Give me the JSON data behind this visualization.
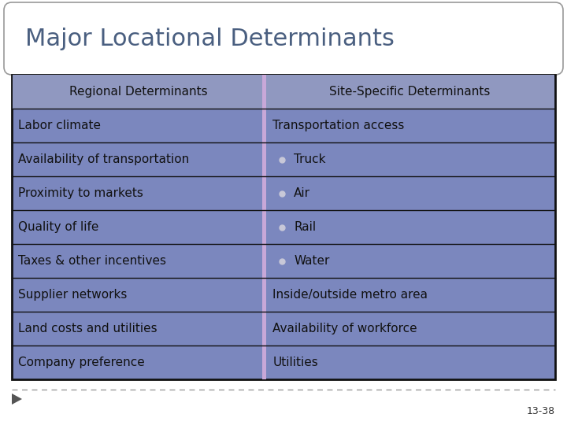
{
  "title": "Major Locational Determinants",
  "title_color": "#4a5f80",
  "title_fontsize": 22,
  "background_color": "#ffffff",
  "table_bg_color": "#7b87be",
  "header_bg_color": "#9098c0",
  "divider_color": "#c8a8d8",
  "border_color": "#111111",
  "cell_border_color": "#111111",
  "text_color": "#111111",
  "left_column_header": "Regional Determinants",
  "right_column_header": "Site-Specific Determinants",
  "left_rows": [
    "Labor climate",
    "Availability of transportation",
    "Proximity to markets",
    "Quality of life",
    "Taxes & other incentives",
    "Supplier networks",
    "Land costs and utilities",
    "Company preference"
  ],
  "right_rows": [
    "Transportation access",
    "Truck",
    "Air",
    "Rail",
    "Water",
    "Inside/outside metro area",
    "Availability of workforce",
    "Utilities"
  ],
  "bullet_rows": [
    1,
    2,
    3,
    4
  ],
  "page_number": "13-38",
  "arrow_color": "#555555",
  "title_box_edge": "#999999"
}
